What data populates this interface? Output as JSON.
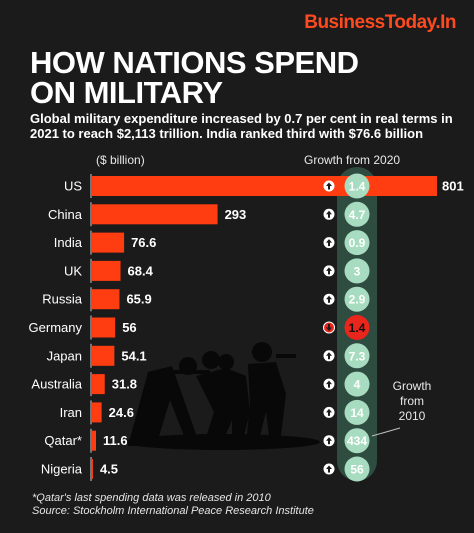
{
  "brand": "BusinessToday.In",
  "title_line1": "HOW NATIONS SPEND",
  "title_line2": "ON MILITARY",
  "subtitle": "Global military expenditure increased by 0.7 per cent in real terms in 2021 to reach $2,113 trillion. India ranked third with $76.6 billion",
  "unit_label": "($ billion)",
  "growth_2020_label": "Growth from 2020",
  "growth_2010_label": [
    "Growth",
    "from",
    "2010"
  ],
  "footnote": "*Qatar's last spending data was released in 2010",
  "source": "Source: Stockholm International Peace Research Institute",
  "colors": {
    "bar": "#ff3d10",
    "up_circle": "#a8dcc0",
    "down_circle": "#e8261c",
    "background": "#1b1b1b"
  },
  "chart_data": {
    "type": "bar",
    "orientation": "horizontal",
    "unit": "$ billion",
    "categories": [
      "US",
      "China",
      "India",
      "UK",
      "Russia",
      "Germany",
      "Japan",
      "Australia",
      "Iran",
      "Qatar*",
      "Nigeria"
    ],
    "values": [
      801,
      293,
      76.6,
      68.4,
      65.9,
      56,
      54.1,
      31.8,
      24.6,
      11.6,
      4.5
    ],
    "value_labels": [
      "801",
      "293",
      "76.6",
      "68.4",
      "65.9",
      "56",
      "54.1",
      "31.8",
      "24.6",
      "11.6",
      "4.5"
    ],
    "growth_from_2020": [
      1.4,
      4.7,
      0.9,
      3,
      2.9,
      -1.4,
      7.3,
      4,
      14,
      434,
      56
    ],
    "growth_labels": [
      "1.4",
      "4.7",
      "0.9",
      "3",
      "2.9",
      "1.4",
      "7.3",
      "4",
      "14",
      "434",
      "56"
    ],
    "growth_direction": [
      "up",
      "up",
      "up",
      "up",
      "up",
      "down",
      "up",
      "up",
      "up",
      "up",
      "up"
    ],
    "xlim": [
      0,
      801
    ]
  }
}
